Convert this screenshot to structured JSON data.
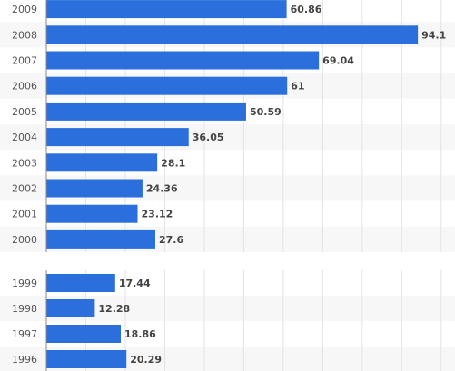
{
  "chart_data": [
    {
      "type": "bar",
      "orientation": "horizontal",
      "categories": [
        "2009",
        "2008",
        "2007",
        "2006",
        "2005",
        "2004",
        "2003",
        "2002",
        "2001",
        "2000"
      ],
      "values": [
        60.86,
        94.1,
        69.04,
        61,
        50.59,
        36.05,
        28.1,
        24.36,
        23.12,
        27.6
      ],
      "color": "#2a6fdc",
      "xlim": [
        0,
        103.5
      ],
      "xticks": [
        0,
        10,
        20,
        30,
        40,
        50,
        60,
        70,
        80,
        90,
        100
      ],
      "grid": true
    },
    {
      "type": "bar",
      "orientation": "horizontal",
      "categories": [
        "1999",
        "1998",
        "1997",
        "1996"
      ],
      "values": [
        17.44,
        12.28,
        18.86,
        20.29
      ],
      "color": "#2a6fdc",
      "xlim": [
        0,
        103.5
      ],
      "xticks": [
        0,
        10,
        20,
        30,
        40,
        50,
        60,
        70,
        80,
        90,
        100
      ],
      "grid": true
    }
  ]
}
